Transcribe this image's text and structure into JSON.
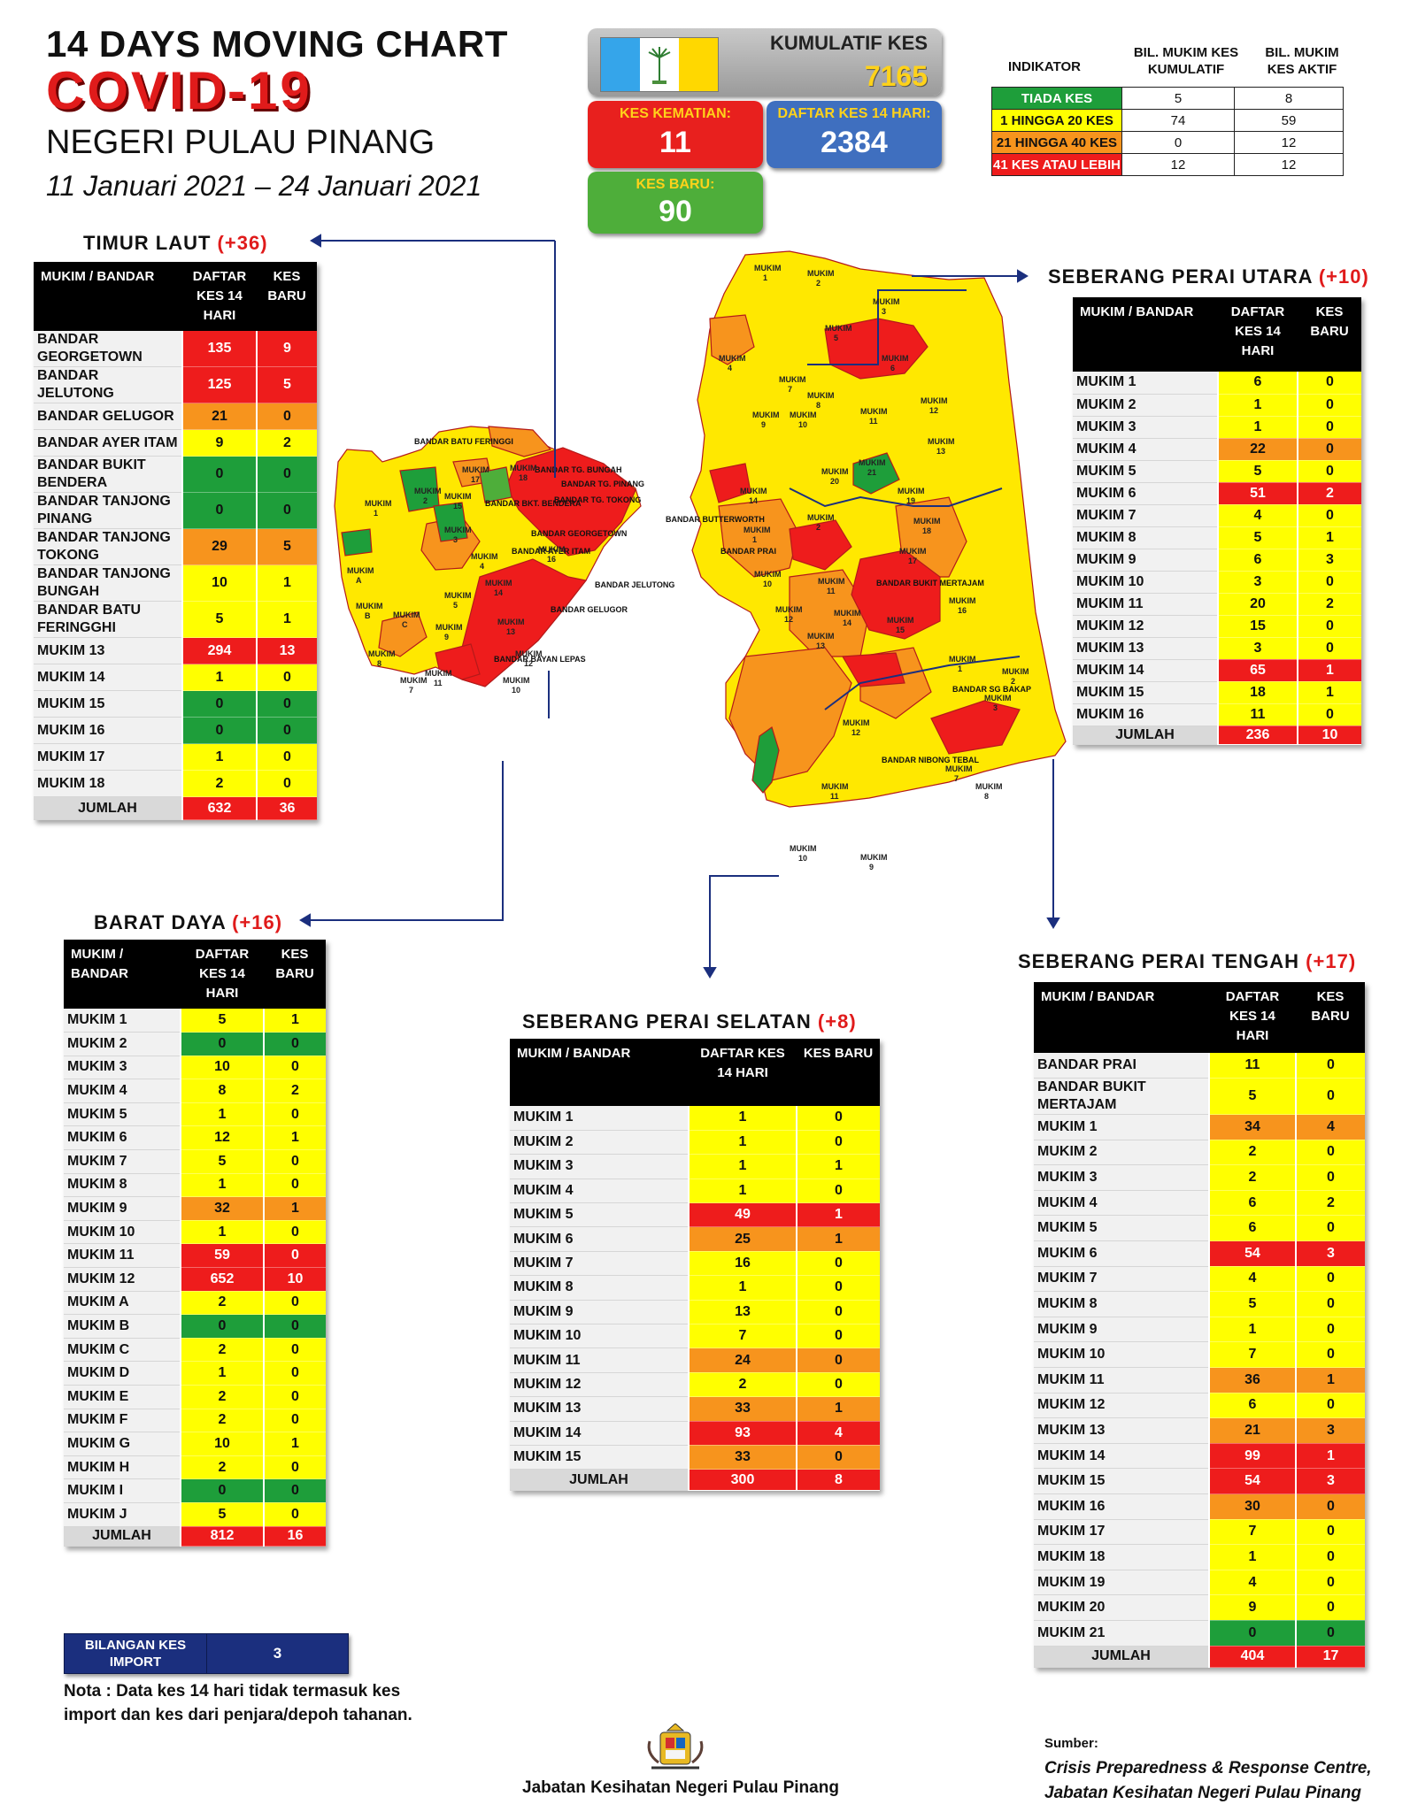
{
  "header": {
    "line1": "14  DAYS MOVING CHART",
    "line2": "COVID-19",
    "line3": "NEGERI PULAU PINANG",
    "dates": "11 Januari 2021 – 24 Januari 2021"
  },
  "stats": {
    "kumulatif_label": "KUMULATIF KES",
    "kumulatif_value": "7165",
    "kematian_label": "KES KEMATIAN:",
    "kematian_value": "11",
    "daftar_label": "DAFTAR KES 14 HARI:",
    "daftar_value": "2384",
    "baru_label": "KES BARU:",
    "baru_value": "90"
  },
  "indicator": {
    "h_indikator": "INDIKATOR",
    "h_kumulatif": "BIL. MUKIM KES KUMULATIF",
    "h_aktif": "BIL. MUKIM KES AKTIF",
    "rows": [
      {
        "label": "TIADA KES",
        "kumulatif": "5",
        "aktif": "8",
        "color": "#1e9e3a"
      },
      {
        "label": "1 HINGGA 20 KES",
        "kumulatif": "74",
        "aktif": "59",
        "color": "#ffff00"
      },
      {
        "label": "21 HINGGA 40 KES",
        "kumulatif": "0",
        "aktif": "12",
        "color": "#f7941d"
      },
      {
        "label": "41 KES ATAU LEBIH",
        "kumulatif": "12",
        "aktif": "12",
        "color": "#ee1c1c"
      }
    ]
  },
  "map_labels": {
    "bandar_batu_feringgi": "BANDAR BATU FERINGGI",
    "bandar_tg_bungah": "BANDAR TG. BUNGAH",
    "bandar_tg_pinang": "BANDAR TG. PINANG",
    "bandar_tg_tokong": "BANDAR TG. TOKONG",
    "bandar_georgetown": "BANDAR GEORGETOWN",
    "bandar_ayer_itam": "BANDAR AYER ITAM",
    "bandar_jelutong": "BANDAR JELUTONG",
    "bandar_bkt_bendera": "BANDAR BKT. BENDERA",
    "bandar_gelugor": "BANDAR GELUGOR",
    "bandar_butterworth": "BANDAR BUTTERWORTH",
    "bandar_prai": "BANDAR PRAI",
    "bandar_bukit_mertajam": "BANDAR BUKIT MERTAJAM",
    "bandar_sg_bakap": "BANDAR SG BAKAP",
    "bandar_nibong_tebal": "BANDAR NIBONG TEBAL",
    "bandar_bayan_lepas": "BANDAR BAYAN LEPAS",
    "mukim": "MUKIM"
  },
  "columns": {
    "mukim_bandar": "MUKIM / BANDAR",
    "daftar_14": "DAFTAR KES 14 HARI",
    "kes_baru": "KES BARU"
  },
  "districts": {
    "timur_laut": {
      "title": "TIMUR LAUT",
      "plus": "(+36)",
      "rows": [
        {
          "name": "BANDAR GEORGETOWN",
          "d": "135",
          "b": "9",
          "dc": "R",
          "bc": "R"
        },
        {
          "name": "BANDAR JELUTONG",
          "d": "125",
          "b": "5",
          "dc": "R",
          "bc": "R"
        },
        {
          "name": "BANDAR GELUGOR",
          "d": "21",
          "b": "0",
          "dc": "O",
          "bc": "O"
        },
        {
          "name": "BANDAR AYER ITAM",
          "d": "9",
          "b": "2",
          "dc": "Y",
          "bc": "Y"
        },
        {
          "name": "BANDAR BUKIT BENDERA",
          "d": "0",
          "b": "0",
          "dc": "G",
          "bc": "G"
        },
        {
          "name": "BANDAR TANJONG PINANG",
          "d": "0",
          "b": "0",
          "dc": "G",
          "bc": "G"
        },
        {
          "name": "BANDAR TANJONG TOKONG",
          "d": "29",
          "b": "5",
          "dc": "O",
          "bc": "O"
        },
        {
          "name": "BANDAR TANJONG BUNGAH",
          "d": "10",
          "b": "1",
          "dc": "Y",
          "bc": "Y"
        },
        {
          "name": "BANDAR BATU FERINGGHI",
          "d": "5",
          "b": "1",
          "dc": "Y",
          "bc": "Y"
        },
        {
          "name": "MUKIM 13",
          "d": "294",
          "b": "13",
          "dc": "R",
          "bc": "R"
        },
        {
          "name": "MUKIM 14",
          "d": "1",
          "b": "0",
          "dc": "Y",
          "bc": "Y"
        },
        {
          "name": "MUKIM 15",
          "d": "0",
          "b": "0",
          "dc": "G",
          "bc": "G"
        },
        {
          "name": "MUKIM 16",
          "d": "0",
          "b": "0",
          "dc": "G",
          "bc": "G"
        },
        {
          "name": "MUKIM 17",
          "d": "1",
          "b": "0",
          "dc": "Y",
          "bc": "Y"
        },
        {
          "name": "MUKIM 18",
          "d": "2",
          "b": "0",
          "dc": "Y",
          "bc": "Y"
        }
      ],
      "total_label": "JUMLAH",
      "total_d": "632",
      "total_b": "36"
    },
    "sp_utara": {
      "title": "SEBERANG PERAI UTARA",
      "plus": "(+10)",
      "rows": [
        {
          "name": "MUKIM 1",
          "d": "6",
          "b": "0",
          "dc": "Y",
          "bc": "Y"
        },
        {
          "name": "MUKIM 2",
          "d": "1",
          "b": "0",
          "dc": "Y",
          "bc": "Y"
        },
        {
          "name": "MUKIM 3",
          "d": "1",
          "b": "0",
          "dc": "Y",
          "bc": "Y"
        },
        {
          "name": "MUKIM 4",
          "d": "22",
          "b": "0",
          "dc": "O",
          "bc": "O"
        },
        {
          "name": "MUKIM 5",
          "d": "5",
          "b": "0",
          "dc": "Y",
          "bc": "Y"
        },
        {
          "name": "MUKIM 6",
          "d": "51",
          "b": "2",
          "dc": "R",
          "bc": "R"
        },
        {
          "name": "MUKIM 7",
          "d": "4",
          "b": "0",
          "dc": "Y",
          "bc": "Y"
        },
        {
          "name": "MUKIM 8",
          "d": "5",
          "b": "1",
          "dc": "Y",
          "bc": "Y"
        },
        {
          "name": "MUKIM 9",
          "d": "6",
          "b": "3",
          "dc": "Y",
          "bc": "Y"
        },
        {
          "name": "MUKIM 10",
          "d": "3",
          "b": "0",
          "dc": "Y",
          "bc": "Y"
        },
        {
          "name": "MUKIM 11",
          "d": "20",
          "b": "2",
          "dc": "Y",
          "bc": "Y"
        },
        {
          "name": "MUKIM 12",
          "d": "15",
          "b": "0",
          "dc": "Y",
          "bc": "Y"
        },
        {
          "name": "MUKIM 13",
          "d": "3",
          "b": "0",
          "dc": "Y",
          "bc": "Y"
        },
        {
          "name": "MUKIM 14",
          "d": "65",
          "b": "1",
          "dc": "R",
          "bc": "R"
        },
        {
          "name": "MUKIM 15",
          "d": "18",
          "b": "1",
          "dc": "Y",
          "bc": "Y"
        },
        {
          "name": "MUKIM 16",
          "d": "11",
          "b": "0",
          "dc": "Y",
          "bc": "Y"
        }
      ],
      "total_label": "JUMLAH",
      "total_d": "236",
      "total_b": "10"
    },
    "barat_daya": {
      "title": "BARAT DAYA",
      "plus": "(+16)",
      "rows": [
        {
          "name": "MUKIM 1",
          "d": "5",
          "b": "1",
          "dc": "Y",
          "bc": "Y"
        },
        {
          "name": "MUKIM 2",
          "d": "0",
          "b": "0",
          "dc": "G",
          "bc": "G"
        },
        {
          "name": "MUKIM 3",
          "d": "10",
          "b": "0",
          "dc": "Y",
          "bc": "Y"
        },
        {
          "name": "MUKIM 4",
          "d": "8",
          "b": "2",
          "dc": "Y",
          "bc": "Y"
        },
        {
          "name": "MUKIM 5",
          "d": "1",
          "b": "0",
          "dc": "Y",
          "bc": "Y"
        },
        {
          "name": "MUKIM 6",
          "d": "12",
          "b": "1",
          "dc": "Y",
          "bc": "Y"
        },
        {
          "name": "MUKIM 7",
          "d": "5",
          "b": "0",
          "dc": "Y",
          "bc": "Y"
        },
        {
          "name": "MUKIM 8",
          "d": "1",
          "b": "0",
          "dc": "Y",
          "bc": "Y"
        },
        {
          "name": "MUKIM 9",
          "d": "32",
          "b": "1",
          "dc": "O",
          "bc": "O"
        },
        {
          "name": "MUKIM 10",
          "d": "1",
          "b": "0",
          "dc": "Y",
          "bc": "Y"
        },
        {
          "name": "MUKIM 11",
          "d": "59",
          "b": "0",
          "dc": "R",
          "bc": "R"
        },
        {
          "name": "MUKIM 12",
          "d": "652",
          "b": "10",
          "dc": "R",
          "bc": "R"
        },
        {
          "name": "MUKIM A",
          "d": "2",
          "b": "0",
          "dc": "Y",
          "bc": "Y"
        },
        {
          "name": "MUKIM B",
          "d": "0",
          "b": "0",
          "dc": "G",
          "bc": "G"
        },
        {
          "name": "MUKIM C",
          "d": "2",
          "b": "0",
          "dc": "Y",
          "bc": "Y"
        },
        {
          "name": "MUKIM D",
          "d": "1",
          "b": "0",
          "dc": "Y",
          "bc": "Y"
        },
        {
          "name": "MUKIM E",
          "d": "2",
          "b": "0",
          "dc": "Y",
          "bc": "Y"
        },
        {
          "name": "MUKIM F",
          "d": "2",
          "b": "0",
          "dc": "Y",
          "bc": "Y"
        },
        {
          "name": "MUKIM G",
          "d": "10",
          "b": "1",
          "dc": "Y",
          "bc": "Y"
        },
        {
          "name": "MUKIM H",
          "d": "2",
          "b": "0",
          "dc": "Y",
          "bc": "Y"
        },
        {
          "name": "MUKIM I",
          "d": "0",
          "b": "0",
          "dc": "G",
          "bc": "G"
        },
        {
          "name": "MUKIM J",
          "d": "5",
          "b": "0",
          "dc": "Y",
          "bc": "Y"
        }
      ],
      "total_label": "JUMLAH",
      "total_d": "812",
      "total_b": "16"
    },
    "sp_selatan": {
      "title": "SEBERANG PERAI SELATAN",
      "plus": "(+8)",
      "rows": [
        {
          "name": "MUKIM 1",
          "d": "1",
          "b": "0",
          "dc": "Y",
          "bc": "Y"
        },
        {
          "name": "MUKIM 2",
          "d": "1",
          "b": "0",
          "dc": "Y",
          "bc": "Y"
        },
        {
          "name": "MUKIM 3",
          "d": "1",
          "b": "1",
          "dc": "Y",
          "bc": "Y"
        },
        {
          "name": "MUKIM 4",
          "d": "1",
          "b": "0",
          "dc": "Y",
          "bc": "Y"
        },
        {
          "name": "MUKIM 5",
          "d": "49",
          "b": "1",
          "dc": "R",
          "bc": "R"
        },
        {
          "name": "MUKIM 6",
          "d": "25",
          "b": "1",
          "dc": "O",
          "bc": "O"
        },
        {
          "name": "MUKIM 7",
          "d": "16",
          "b": "0",
          "dc": "Y",
          "bc": "Y"
        },
        {
          "name": "MUKIM 8",
          "d": "1",
          "b": "0",
          "dc": "Y",
          "bc": "Y"
        },
        {
          "name": "MUKIM 9",
          "d": "13",
          "b": "0",
          "dc": "Y",
          "bc": "Y"
        },
        {
          "name": "MUKIM 10",
          "d": "7",
          "b": "0",
          "dc": "Y",
          "bc": "Y"
        },
        {
          "name": "MUKIM 11",
          "d": "24",
          "b": "0",
          "dc": "O",
          "bc": "O"
        },
        {
          "name": "MUKIM 12",
          "d": "2",
          "b": "0",
          "dc": "Y",
          "bc": "Y"
        },
        {
          "name": "MUKIM 13",
          "d": "33",
          "b": "1",
          "dc": "O",
          "bc": "O"
        },
        {
          "name": "MUKIM 14",
          "d": "93",
          "b": "4",
          "dc": "R",
          "bc": "R"
        },
        {
          "name": "MUKIM 15",
          "d": "33",
          "b": "0",
          "dc": "O",
          "bc": "O"
        }
      ],
      "total_label": "JUMLAH",
      "total_d": "300",
      "total_b": "8"
    },
    "sp_tengah": {
      "title": "SEBERANG PERAI TENGAH",
      "plus": "(+17)",
      "rows": [
        {
          "name": "BANDAR PRAI",
          "d": "11",
          "b": "0",
          "dc": "Y",
          "bc": "Y"
        },
        {
          "name": "BANDAR BUKIT MERTAJAM",
          "d": "5",
          "b": "0",
          "dc": "Y",
          "bc": "Y"
        },
        {
          "name": "MUKIM 1",
          "d": "34",
          "b": "4",
          "dc": "O",
          "bc": "O"
        },
        {
          "name": "MUKIM 2",
          "d": "2",
          "b": "0",
          "dc": "Y",
          "bc": "Y"
        },
        {
          "name": "MUKIM 3",
          "d": "2",
          "b": "0",
          "dc": "Y",
          "bc": "Y"
        },
        {
          "name": "MUKIM 4",
          "d": "6",
          "b": "2",
          "dc": "Y",
          "bc": "Y"
        },
        {
          "name": "MUKIM 5",
          "d": "6",
          "b": "0",
          "dc": "Y",
          "bc": "Y"
        },
        {
          "name": "MUKIM 6",
          "d": "54",
          "b": "3",
          "dc": "R",
          "bc": "R"
        },
        {
          "name": "MUKIM 7",
          "d": "4",
          "b": "0",
          "dc": "Y",
          "bc": "Y"
        },
        {
          "name": "MUKIM 8",
          "d": "5",
          "b": "0",
          "dc": "Y",
          "bc": "Y"
        },
        {
          "name": "MUKIM 9",
          "d": "1",
          "b": "0",
          "dc": "Y",
          "bc": "Y"
        },
        {
          "name": "MUKIM 10",
          "d": "7",
          "b": "0",
          "dc": "Y",
          "bc": "Y"
        },
        {
          "name": "MUKIM 11",
          "d": "36",
          "b": "1",
          "dc": "O",
          "bc": "O"
        },
        {
          "name": "MUKIM 12",
          "d": "6",
          "b": "0",
          "dc": "Y",
          "bc": "Y"
        },
        {
          "name": "MUKIM 13",
          "d": "21",
          "b": "3",
          "dc": "O",
          "bc": "O"
        },
        {
          "name": "MUKIM 14",
          "d": "99",
          "b": "1",
          "dc": "R",
          "bc": "R"
        },
        {
          "name": "MUKIM 15",
          "d": "54",
          "b": "3",
          "dc": "R",
          "bc": "R"
        },
        {
          "name": "MUKIM 16",
          "d": "30",
          "b": "0",
          "dc": "O",
          "bc": "O"
        },
        {
          "name": "MUKIM 17",
          "d": "7",
          "b": "0",
          "dc": "Y",
          "bc": "Y"
        },
        {
          "name": "MUKIM 18",
          "d": "1",
          "b": "0",
          "dc": "Y",
          "bc": "Y"
        },
        {
          "name": "MUKIM 19",
          "d": "4",
          "b": "0",
          "dc": "Y",
          "bc": "Y"
        },
        {
          "name": "MUKIM 20",
          "d": "9",
          "b": "0",
          "dc": "Y",
          "bc": "Y"
        },
        {
          "name": "MUKIM 21",
          "d": "0",
          "b": "0",
          "dc": "G",
          "bc": "G"
        }
      ],
      "total_label": "JUMLAH",
      "total_d": "404",
      "total_b": "17"
    }
  },
  "import": {
    "label": "BILANGAN KES IMPORT",
    "value": "3"
  },
  "note": "Nota : Data kes 14 hari tidak termasuk kes import dan kes dari penjara/depoh tahanan.",
  "footer": {
    "agency": "Jabatan Kesihatan Negeri Pulau Pinang",
    "sumber_label": "Sumber:",
    "sumber_line1": "Crisis Preparedness & Response Centre,",
    "sumber_line2": "Jabatan Kesihatan Negeri Pulau Pinang"
  }
}
